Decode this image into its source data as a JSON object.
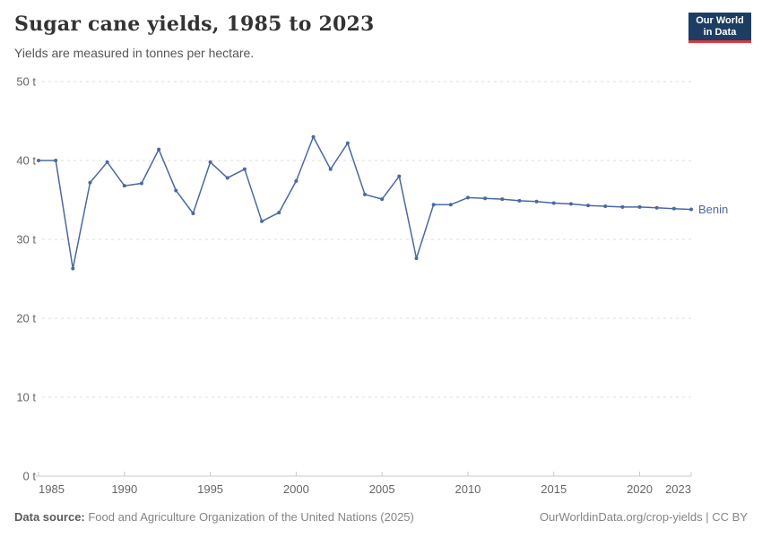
{
  "header": {
    "title": "Sugar cane yields, 1985 to 2023",
    "subtitle": "Yields are measured in tonnes per hectare.",
    "logo": {
      "line1": "Our World",
      "line2": "in Data",
      "bg_color": "#1d3d63",
      "accent_color": "#e0373f"
    }
  },
  "chart_data": {
    "type": "line",
    "title": "Sugar cane yields, 1985 to 2023",
    "subtitle": "Yields are measured in tonnes per hectare.",
    "unit": "tonnes per hectare",
    "xlim": [
      1985,
      2023
    ],
    "ylim": [
      0,
      50
    ],
    "grid": true,
    "legend_position": "end-of-line",
    "yticks": [
      0,
      10,
      20,
      30,
      40,
      50
    ],
    "ytick_labels": [
      "0 t",
      "10 t",
      "20 t",
      "30 t",
      "40 t",
      "50 t"
    ],
    "xticks": [
      1985,
      1990,
      1995,
      2000,
      2005,
      2010,
      2015,
      2020,
      2023
    ],
    "xtick_labels": [
      "1985",
      "1990",
      "1995",
      "2000",
      "2005",
      "2010",
      "2015",
      "2020",
      "2023"
    ],
    "x": [
      1985,
      1986,
      1987,
      1988,
      1989,
      1990,
      1991,
      1992,
      1993,
      1994,
      1995,
      1996,
      1997,
      1998,
      1999,
      2000,
      2001,
      2002,
      2003,
      2004,
      2005,
      2006,
      2007,
      2008,
      2009,
      2010,
      2011,
      2012,
      2013,
      2014,
      2015,
      2016,
      2017,
      2018,
      2019,
      2020,
      2021,
      2022,
      2023
    ],
    "series": [
      {
        "name": "Benin",
        "color": "#4a68a2",
        "values": [
          40.0,
          40.0,
          26.3,
          37.2,
          39.8,
          36.8,
          37.1,
          41.4,
          36.2,
          33.3,
          39.8,
          37.8,
          38.9,
          32.3,
          33.4,
          37.4,
          43.0,
          38.9,
          42.2,
          35.7,
          35.1,
          38.0,
          27.6,
          34.4,
          34.4,
          35.3,
          35.2,
          35.1,
          34.9,
          34.8,
          34.6,
          34.5,
          34.3,
          34.2,
          34.1,
          34.1,
          34.0,
          33.9,
          33.8
        ]
      }
    ]
  },
  "footer": {
    "source_label": "Data source:",
    "source_text": " Food and Agriculture Organization of the United Nations (2025)",
    "url_license": "OurWorldinData.org/crop-yields | CC BY"
  }
}
